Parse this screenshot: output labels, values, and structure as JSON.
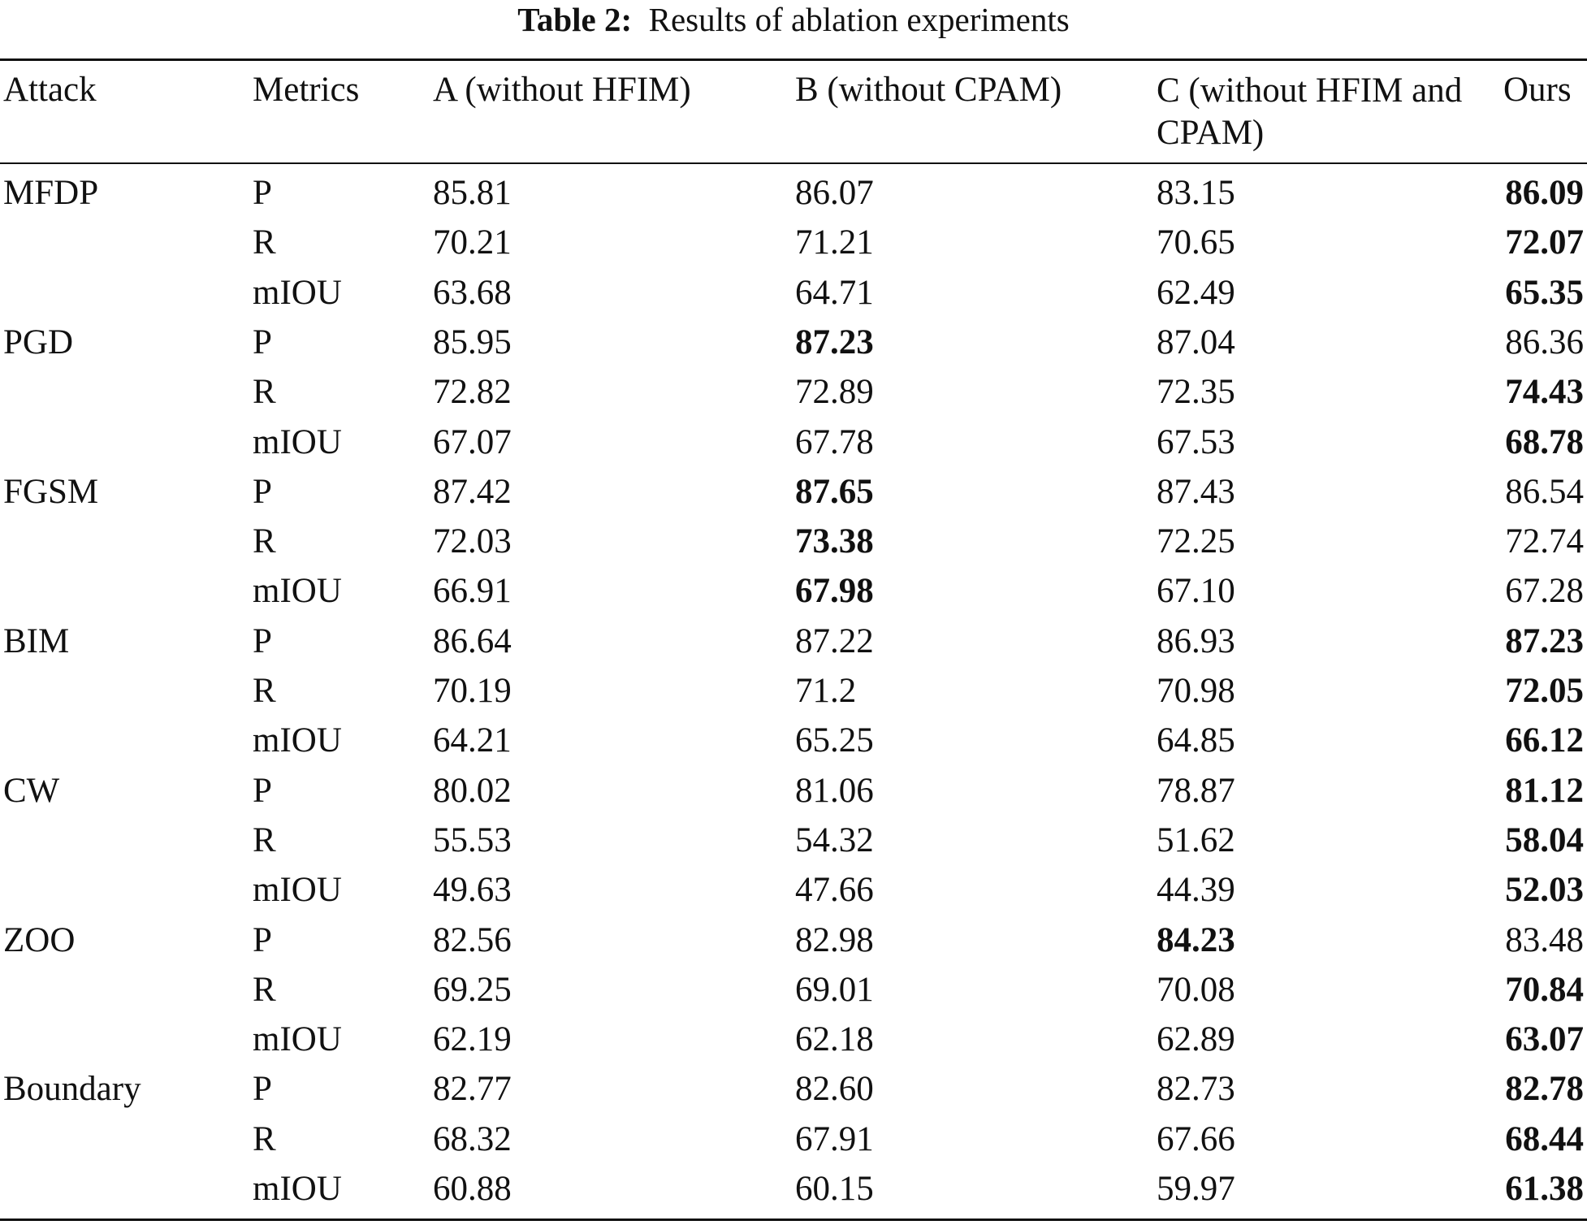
{
  "caption": {
    "label": "Table 2:",
    "text": "Results of ablation experiments"
  },
  "table": {
    "headers": [
      "Attack",
      "Metrics",
      "A (without HFIM)",
      "B (without CPAM)",
      "C (without HFIM and CPAM)",
      "Ours"
    ],
    "groups": [
      {
        "attack": "MFDP",
        "rows": [
          {
            "metric": "P",
            "a": "85.81",
            "b": "86.07",
            "c": "83.15",
            "ours": "86.09",
            "best": "ours"
          },
          {
            "metric": "R",
            "a": "70.21",
            "b": "71.21",
            "c": "70.65",
            "ours": "72.07",
            "best": "ours"
          },
          {
            "metric": "mIOU",
            "a": "63.68",
            "b": "64.71",
            "c": "62.49",
            "ours": "65.35",
            "best": "ours"
          }
        ]
      },
      {
        "attack": "PGD",
        "rows": [
          {
            "metric": "P",
            "a": "85.95",
            "b": "87.23",
            "c": "87.04",
            "ours": "86.36",
            "best": "b"
          },
          {
            "metric": "R",
            "a": "72.82",
            "b": "72.89",
            "c": "72.35",
            "ours": "74.43",
            "best": "ours"
          },
          {
            "metric": "mIOU",
            "a": "67.07",
            "b": "67.78",
            "c": "67.53",
            "ours": "68.78",
            "best": "ours"
          }
        ]
      },
      {
        "attack": "FGSM",
        "rows": [
          {
            "metric": "P",
            "a": "87.42",
            "b": "87.65",
            "c": "87.43",
            "ours": "86.54",
            "best": "b"
          },
          {
            "metric": "R",
            "a": "72.03",
            "b": "73.38",
            "c": "72.25",
            "ours": "72.74",
            "best": "b"
          },
          {
            "metric": "mIOU",
            "a": "66.91",
            "b": "67.98",
            "c": "67.10",
            "ours": "67.28",
            "best": "b"
          }
        ]
      },
      {
        "attack": "BIM",
        "rows": [
          {
            "metric": "P",
            "a": "86.64",
            "b": "87.22",
            "c": "86.93",
            "ours": "87.23",
            "best": "ours"
          },
          {
            "metric": "R",
            "a": "70.19",
            "b": "71.2",
            "c": "70.98",
            "ours": "72.05",
            "best": "ours"
          },
          {
            "metric": "mIOU",
            "a": "64.21",
            "b": "65.25",
            "c": "64.85",
            "ours": "66.12",
            "best": "ours"
          }
        ]
      },
      {
        "attack": "CW",
        "rows": [
          {
            "metric": "P",
            "a": "80.02",
            "b": "81.06",
            "c": "78.87",
            "ours": "81.12",
            "best": "ours"
          },
          {
            "metric": "R",
            "a": "55.53",
            "b": "54.32",
            "c": "51.62",
            "ours": "58.04",
            "best": "ours"
          },
          {
            "metric": "mIOU",
            "a": "49.63",
            "b": "47.66",
            "c": "44.39",
            "ours": "52.03",
            "best": "ours"
          }
        ]
      },
      {
        "attack": "ZOO",
        "rows": [
          {
            "metric": "P",
            "a": "82.56",
            "b": "82.98",
            "c": "84.23",
            "ours": "83.48",
            "best": "c"
          },
          {
            "metric": "R",
            "a": "69.25",
            "b": "69.01",
            "c": "70.08",
            "ours": "70.84",
            "best": "ours"
          },
          {
            "metric": "mIOU",
            "a": "62.19",
            "b": "62.18",
            "c": "62.89",
            "ours": "63.07",
            "best": "ours"
          }
        ]
      },
      {
        "attack": "Boundary",
        "rows": [
          {
            "metric": "P",
            "a": "82.77",
            "b": "82.60",
            "c": "82.73",
            "ours": "82.78",
            "best": "ours"
          },
          {
            "metric": "R",
            "a": "68.32",
            "b": "67.91",
            "c": "67.66",
            "ours": "68.44",
            "best": "ours"
          },
          {
            "metric": "mIOU",
            "a": "60.88",
            "b": "60.15",
            "c": "59.97",
            "ours": "61.38",
            "best": "ours"
          }
        ]
      }
    ]
  }
}
